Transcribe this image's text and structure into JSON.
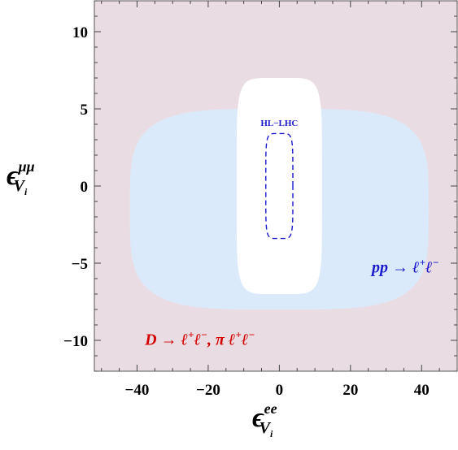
{
  "chart_data": {
    "type": "area",
    "title": "",
    "xlabel": {
      "symbol": "ϵ",
      "superscript": "ee",
      "subscript": "V",
      "sub_index": "i"
    },
    "ylabel": {
      "symbol": "ϵ",
      "superscript": "μμ",
      "subscript": "V",
      "sub_index": "i"
    },
    "xlim": [
      -52,
      50
    ],
    "ylim": [
      -12,
      12
    ],
    "xticks": [
      -40,
      -20,
      0,
      20,
      40
    ],
    "yticks": [
      -10,
      -5,
      0,
      5,
      10
    ],
    "xtick_labels": [
      "−40",
      "−20",
      "0",
      "20",
      "40"
    ],
    "ytick_labels": [
      "−10",
      "−5",
      "0",
      "5",
      "10"
    ],
    "grid": false,
    "regions": [
      {
        "name": "D → ℓ⁺ℓ⁻, π ℓ⁺ℓ⁻",
        "role": "excluded-background",
        "color": "#e9dde3"
      },
      {
        "name": "pp → ℓ⁺ℓ⁻",
        "role": "allowed-by-pp",
        "shape": "superellipse",
        "center": [
          0,
          -1.5
        ],
        "semi_axes": [
          42,
          6.5
        ],
        "exponent": 4,
        "color": "#dbeafb"
      },
      {
        "name": "D → ℓ⁺ℓ⁻, π ℓ⁺ℓ⁻ (allowed)",
        "role": "allowed-by-D",
        "shape": "superellipse",
        "center": [
          0,
          0
        ],
        "semi_axes": [
          12,
          7
        ],
        "exponent": 6,
        "color": "#ffffff"
      },
      {
        "name": "HL−LHC",
        "role": "projection",
        "shape": "superellipse",
        "center": [
          0,
          0
        ],
        "semi_axes": [
          3.8,
          3.4
        ],
        "exponent": 6,
        "style": "dashed",
        "color": "#1a1acc"
      }
    ],
    "annotations": [
      {
        "id": "hl",
        "text": "HL−LHC",
        "x": 0,
        "y": 3.9,
        "color": "#1a1acc"
      },
      {
        "id": "pp",
        "base1": "pp",
        "arrow": " → ",
        "base2": "ℓ",
        "sup2": "+",
        "base3": "ℓ",
        "sup3": "−",
        "x": 26,
        "y": -5.6,
        "color": "#1a1acc"
      },
      {
        "id": "d",
        "base1": "D",
        "arrow": " → ",
        "base2": "ℓ",
        "sup2": "+",
        "base3": "ℓ",
        "sup3": "−",
        "rest": ", π ",
        "base4": "ℓ",
        "sup4": "+",
        "base5": "ℓ",
        "sup5": "−",
        "x": -37.8,
        "y": -10.3,
        "color": "#d40000"
      }
    ]
  }
}
